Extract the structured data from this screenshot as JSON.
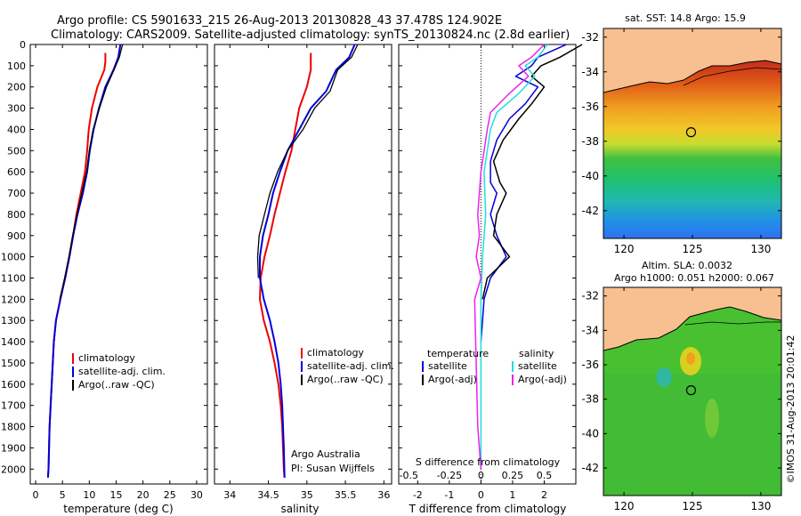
{
  "header": {
    "title_line1": "Argo profile: CS 5901633_215 26-Aug-2013 20130828_43 37.478S 124.902E",
    "title_line2": "Climatology: CARS2009. Satellite-adjusted climatology: synTS_20130824.nc (2.8d earlier)"
  },
  "colors": {
    "climatology": "#ee0000",
    "satellite": "#0000dd",
    "argo": "#000000",
    "cyan": "#22dddd",
    "magenta": "#ee22ee",
    "land": "#f8c090"
  },
  "chart_data": [
    {
      "type": "line",
      "name": "temperature-profile",
      "xlabel": "temperature (deg C)",
      "xlim": [
        -1,
        32
      ],
      "xticks": [
        0,
        5,
        10,
        15,
        20,
        25,
        30
      ],
      "ylim": [
        2070,
        0
      ],
      "yticks": [
        0,
        100,
        200,
        300,
        400,
        500,
        600,
        700,
        800,
        900,
        1000,
        1100,
        1200,
        1300,
        1400,
        1500,
        1600,
        1700,
        1800,
        1900,
        2000
      ],
      "legend": [
        "climatology",
        "satellite-adj. clim.",
        "Argo(..raw -QC)"
      ],
      "series": [
        {
          "name": "climatology",
          "color": "#ee0000",
          "width": 2,
          "x": [
            13.0,
            13.0,
            12.8,
            11.5,
            10.5,
            9.9,
            9.6,
            9.2,
            8.4,
            7.6,
            7.0,
            6.3,
            5.5,
            4.6,
            3.8,
            3.4,
            3.2,
            3.0,
            2.8,
            2.6,
            2.5,
            2.4,
            2.3
          ],
          "y": [
            40,
            80,
            120,
            200,
            300,
            400,
            500,
            600,
            700,
            800,
            900,
            1000,
            1100,
            1200,
            1300,
            1400,
            1500,
            1600,
            1700,
            1800,
            1900,
            2000,
            2040
          ]
        },
        {
          "name": "satellite-adj. clim.",
          "color": "#0000dd",
          "width": 2,
          "x": [
            15.8,
            15.4,
            14.5,
            13.0,
            11.8,
            10.8,
            10.1,
            9.6,
            8.8,
            7.8,
            7.0,
            6.3,
            5.5,
            4.6,
            3.8,
            3.4,
            3.2,
            3.0,
            2.8,
            2.6,
            2.5,
            2.4,
            2.3
          ],
          "y": [
            0,
            60,
            120,
            200,
            300,
            400,
            500,
            600,
            700,
            800,
            900,
            1000,
            1100,
            1200,
            1300,
            1400,
            1500,
            1600,
            1700,
            1800,
            1900,
            2000,
            2040
          ]
        },
        {
          "name": "Argo(..raw -QC)",
          "color": "#000000",
          "width": 1.3,
          "x": [
            16.2,
            15.6,
            14.6,
            13.2,
            11.9,
            10.7,
            10.0,
            9.5,
            8.6,
            7.7,
            6.9,
            6.2,
            5.4,
            4.5
          ],
          "y": [
            0,
            60,
            120,
            200,
            300,
            400,
            500,
            600,
            700,
            800,
            900,
            1000,
            1100,
            1200
          ]
        }
      ],
      "legend_labels": [
        "climatology",
        "satellite-adj. clim.",
        "Argo(..raw -QC)"
      ]
    },
    {
      "type": "line",
      "name": "salinity-profile",
      "xlabel": "salinity",
      "xlim": [
        33.8,
        36.1
      ],
      "xticks": [
        34,
        34.5,
        35,
        35.5,
        36
      ],
      "ylim": [
        2070,
        0
      ],
      "legend": [
        "climatology",
        "satellite-adj. clim.",
        "Argo(..raw -QC)"
      ],
      "annotation_line1": "Argo Australia",
      "annotation_line2": "PI: Susan Wijffels",
      "series": [
        {
          "name": "climatology",
          "color": "#ee0000",
          "width": 2,
          "x": [
            35.05,
            35.05,
            35.0,
            34.9,
            34.85,
            34.8,
            34.72,
            34.65,
            34.58,
            34.52,
            34.45,
            34.4,
            34.39,
            34.44,
            34.52,
            34.58,
            34.63,
            34.66,
            34.68,
            34.69,
            34.7,
            34.71
          ],
          "y": [
            40,
            120,
            200,
            300,
            400,
            500,
            600,
            700,
            800,
            900,
            1000,
            1100,
            1200,
            1300,
            1400,
            1500,
            1600,
            1700,
            1800,
            1900,
            2000,
            2040
          ]
        },
        {
          "name": "satellite-adj. clim.",
          "color": "#0000dd",
          "width": 2,
          "x": [
            35.62,
            35.55,
            35.38,
            35.25,
            35.05,
            34.9,
            34.75,
            34.65,
            34.56,
            34.5,
            34.43,
            34.39,
            34.39,
            34.44,
            34.52,
            34.58,
            34.63,
            34.66,
            34.68,
            34.69,
            34.7,
            34.71
          ],
          "y": [
            0,
            60,
            120,
            220,
            300,
            400,
            500,
            600,
            700,
            800,
            900,
            1000,
            1100,
            1200,
            1300,
            1400,
            1500,
            1600,
            1700,
            1800,
            1900,
            2040
          ]
        },
        {
          "name": "Argo(..raw -QC)",
          "color": "#000000",
          "width": 1.3,
          "x": [
            35.66,
            35.58,
            35.4,
            35.3,
            35.1,
            34.95,
            34.75,
            34.62,
            34.52,
            34.45,
            34.38,
            34.36,
            34.37
          ],
          "y": [
            0,
            60,
            120,
            220,
            300,
            400,
            500,
            600,
            700,
            800,
            900,
            1000,
            1100
          ]
        }
      ],
      "legend_labels": [
        "climatology",
        "satellite-adj. clim.",
        "Argo(..raw -QC)"
      ]
    },
    {
      "type": "line",
      "name": "difference-profile",
      "xlabel": "T difference from climatology",
      "xlabel_top": "S difference from climatology",
      "xlim_T": [
        -2.6,
        3.0
      ],
      "xticks_T": [
        -2,
        -1,
        0,
        1,
        2
      ],
      "xticks_S_labels": [
        "-0.5",
        "-0.25",
        "0",
        "0.25",
        "0.5"
      ],
      "xticks_S_T_units": [
        -2,
        -1,
        0,
        1,
        2
      ],
      "ylim": [
        2070,
        0
      ],
      "legend_temperature_title": "temperature",
      "legend_salinity_title": "salinity",
      "legend_items": [
        "satellite",
        "Argo(-adj)",
        "satellite",
        "Argo(-adj)"
      ],
      "series": [
        {
          "name": "T satellite",
          "color": "#0000dd",
          "width": 1.5,
          "x": [
            2.7,
            1.8,
            1.6,
            1.1,
            1.8,
            1.4,
            0.9,
            0.5,
            0.3,
            0.3,
            0.5,
            0.3,
            0.5,
            0.8,
            0.3,
            0.1,
            0.05,
            0.0
          ],
          "y": [
            0,
            60,
            100,
            150,
            200,
            280,
            350,
            450,
            550,
            650,
            700,
            800,
            900,
            1000,
            1100,
            1200,
            1300,
            1400
          ]
        },
        {
          "name": "T Argo(-adj)",
          "color": "#000000",
          "width": 1.5,
          "x": [
            3.2,
            2.5,
            1.9,
            1.6,
            2.0,
            1.6,
            1.2,
            0.7,
            0.4,
            0.6,
            0.8,
            0.5,
            0.4,
            0.9,
            0.2,
            0.05
          ],
          "y": [
            0,
            60,
            100,
            150,
            200,
            280,
            350,
            450,
            550,
            650,
            700,
            800,
            900,
            1000,
            1100,
            1200
          ]
        },
        {
          "name": "S satellite",
          "color": "#22dddd",
          "width": 1.5,
          "x": [
            2.1,
            1.8,
            1.4,
            1.7,
            1.2,
            0.5,
            0.3,
            0.2,
            0.1,
            0.15,
            0.05,
            0.0,
            0.0,
            0.0
          ],
          "y": [
            0,
            60,
            100,
            150,
            230,
            320,
            400,
            500,
            600,
            800,
            1000,
            1200,
            1600,
            2000
          ]
        },
        {
          "name": "S Argo(-adj)",
          "color": "#ee22ee",
          "width": 1.5,
          "x": [
            2.0,
            1.6,
            1.2,
            1.5,
            0.9,
            0.3,
            0.2,
            0.0,
            -0.1,
            -0.05,
            -0.15,
            0.0,
            -0.2,
            -0.1,
            0.0
          ],
          "y": [
            0,
            60,
            100,
            150,
            230,
            320,
            400,
            600,
            800,
            900,
            1000,
            1100,
            1200,
            1800,
            2000
          ]
        }
      ]
    },
    {
      "type": "heatmap",
      "name": "sst-map",
      "title": "sat. SST: 14.8 Argo: 15.9",
      "xlim": [
        118.5,
        131.5
      ],
      "ylim": [
        -43.6,
        -31.5
      ],
      "xticks": [
        120,
        125,
        130
      ],
      "yticks": [
        -32,
        -34,
        -36,
        -38,
        -40,
        -42
      ],
      "argo_position": {
        "lon": 124.9,
        "lat": -37.48
      }
    },
    {
      "type": "heatmap",
      "name": "sla-map",
      "title_line1": "Altim. SLA: 0.0032",
      "title_line2": "Argo h1000: 0.051 h2000: 0.067",
      "xlim": [
        118.5,
        131.5
      ],
      "ylim": [
        -43.6,
        -31.5
      ],
      "xticks": [
        120,
        125,
        130
      ],
      "yticks": [
        -32,
        -34,
        -36,
        -38,
        -40,
        -42
      ],
      "argo_position": {
        "lon": 124.9,
        "lat": -37.48
      }
    }
  ],
  "footer": {
    "imos_label": "©IMOS 31-Aug-2013 20:01:42"
  }
}
